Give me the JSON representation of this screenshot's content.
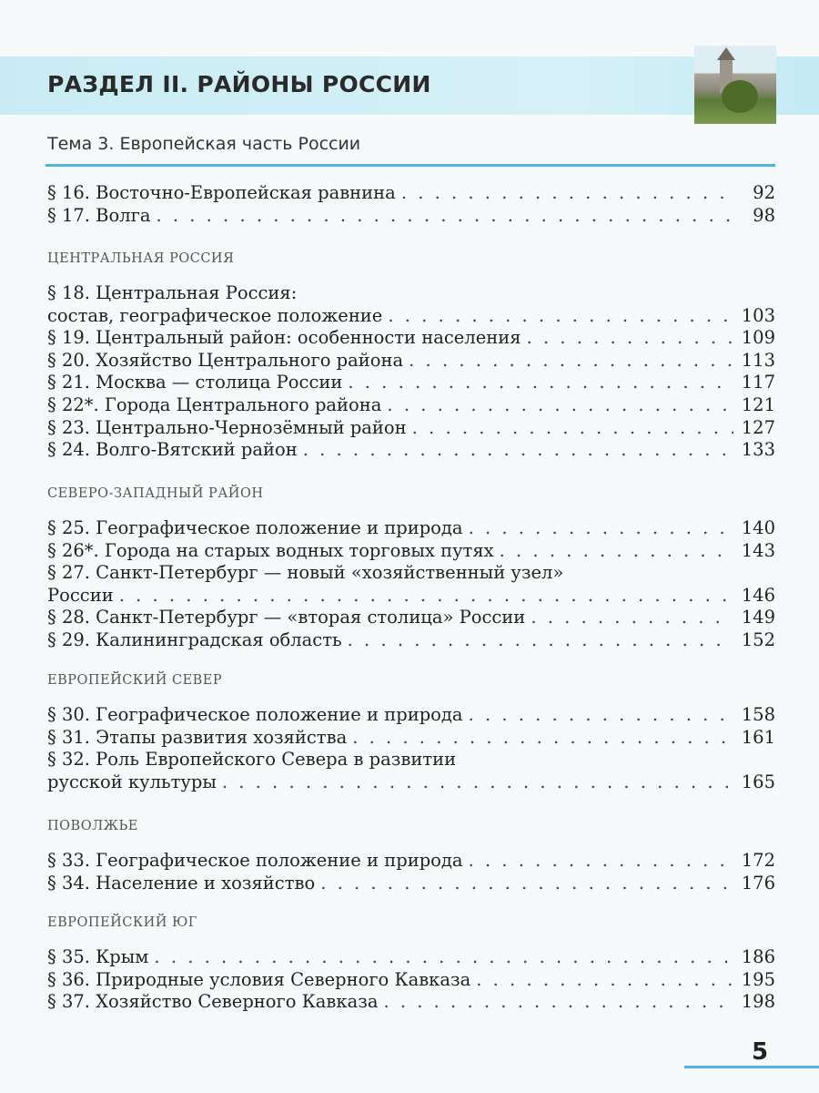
{
  "header": {
    "section_title": "РАЗДЕЛ II. РАЙОНЫ РОССИИ",
    "topic_title": "Тема 3. Европейская часть России",
    "accent_color": "#4fb3de",
    "band_color": "#cdeef5"
  },
  "groups": [
    {
      "heading": "",
      "entries": [
        {
          "text": "§ 16. Восточно-Европейская равнина",
          "page": "92"
        },
        {
          "text": "§ 17. Волга",
          "page": "98"
        }
      ]
    },
    {
      "heading": "ЦЕНТРАЛЬНАЯ РОССИЯ",
      "entries": [
        {
          "text": "§ 18. Центральная Россия:",
          "page": ""
        },
        {
          "text": "состав, географическое положение",
          "page": "103"
        },
        {
          "text": "§ 19. Центральный район: особенности населения",
          "page": "109"
        },
        {
          "text": "§ 20. Хозяйство Центрального района",
          "page": "113"
        },
        {
          "text": "§ 21. Москва — столица России",
          "page": "117"
        },
        {
          "text": "§ 22*. Города Центрального района",
          "page": "121"
        },
        {
          "text": "§ 23. Центрально-Чернозёмный район",
          "page": "127"
        },
        {
          "text": "§ 24. Волго-Вятский район",
          "page": "133"
        }
      ]
    },
    {
      "heading": "СЕВЕРО-ЗАПАДНЫЙ РАЙОН",
      "entries": [
        {
          "text": "§ 25. Географическое положение и природа",
          "page": "140"
        },
        {
          "text": "§ 26*. Города на старых водных торговых путях",
          "page": "143"
        },
        {
          "text": "§ 27. Санкт-Петербург — новый «хозяйственный узел»",
          "page": ""
        },
        {
          "text": "России",
          "page": "146"
        },
        {
          "text": "§ 28. Санкт-Петербург — «вторая столица» России",
          "page": "149"
        },
        {
          "text": "§ 29. Калининградская область",
          "page": "152"
        }
      ]
    },
    {
      "heading": "ЕВРОПЕЙСКИЙ СЕВЕР",
      "entries": [
        {
          "text": "§ 30. Географическое положение и природа",
          "page": "158"
        },
        {
          "text": "§ 31. Этапы развития хозяйства",
          "page": "161"
        },
        {
          "text": "§ 32. Роль Европейского Севера в развитии",
          "page": ""
        },
        {
          "text": "русской культуры",
          "page": "165"
        }
      ]
    },
    {
      "heading": "ПОВОЛЖЬЕ",
      "entries": [
        {
          "text": "§ 33. Географическое положение и природа",
          "page": "172"
        },
        {
          "text": "§ 34. Население и хозяйство",
          "page": "176"
        }
      ]
    },
    {
      "heading": "ЕВРОПЕЙСКИЙ ЮГ",
      "entries": [
        {
          "text": "§ 35. Крым",
          "page": "186"
        },
        {
          "text": "§ 36. Природные условия Северного Кавказа",
          "page": "195"
        },
        {
          "text": "§ 37. Хозяйство Северного Кавказа",
          "page": "198"
        }
      ]
    }
  ],
  "footer": {
    "page_number": "5"
  }
}
